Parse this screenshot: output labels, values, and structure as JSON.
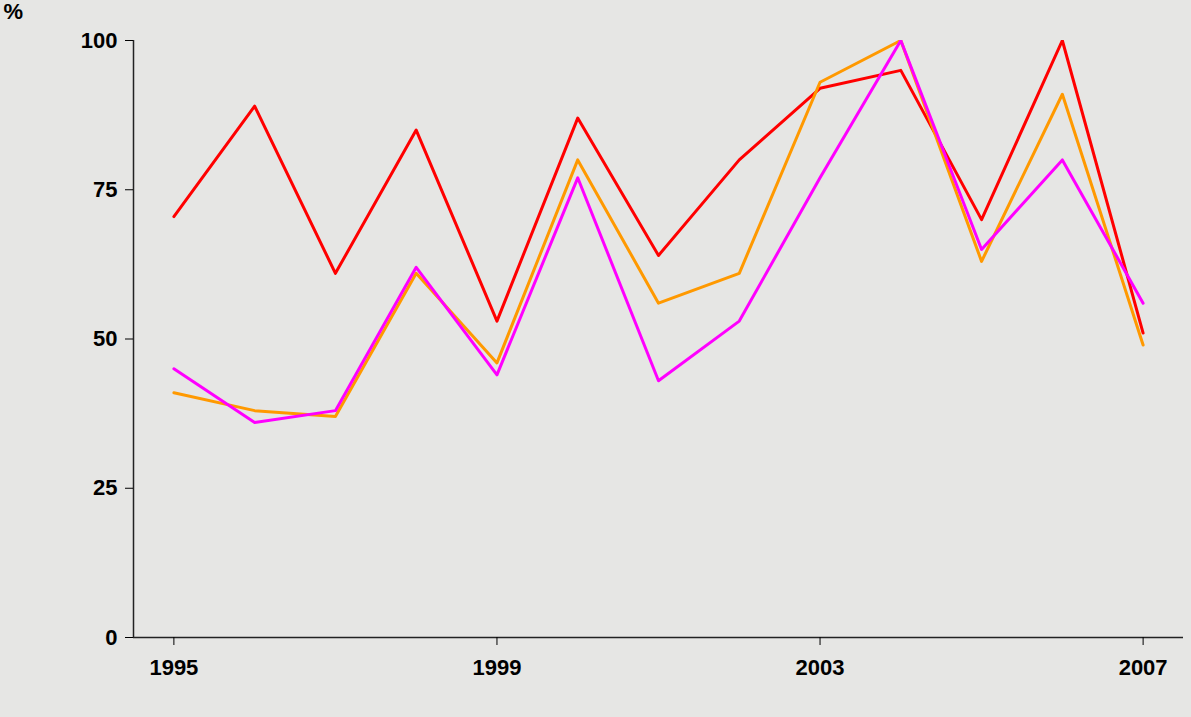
{
  "chart_data": {
    "type": "line",
    "ylabel": "%",
    "x": [
      1995,
      1996,
      1997,
      1998,
      1999,
      2000,
      2001,
      2002,
      2003,
      2004,
      2005,
      2006,
      2007
    ],
    "series": [
      {
        "color": "#ff0000",
        "values": [
          70.5,
          89,
          61,
          85,
          53,
          87,
          64,
          80,
          92,
          95,
          70,
          100,
          51
        ]
      },
      {
        "color": "#ff9900",
        "values": [
          41,
          38,
          37,
          61,
          46,
          80,
          56,
          61,
          93,
          100,
          63,
          91,
          49
        ]
      },
      {
        "color": "#ff00ff",
        "values": [
          45,
          36,
          38,
          62,
          44,
          77,
          43,
          53,
          77,
          100,
          65,
          80,
          56
        ]
      }
    ],
    "xlim": [
      1994.5,
      2007.5
    ],
    "xticks": [
      1995,
      1999,
      2003,
      2007
    ],
    "ylim": [
      0,
      100
    ],
    "yticks": [
      0,
      25,
      50,
      75,
      100
    ],
    "grid": false,
    "marker": "none"
  }
}
